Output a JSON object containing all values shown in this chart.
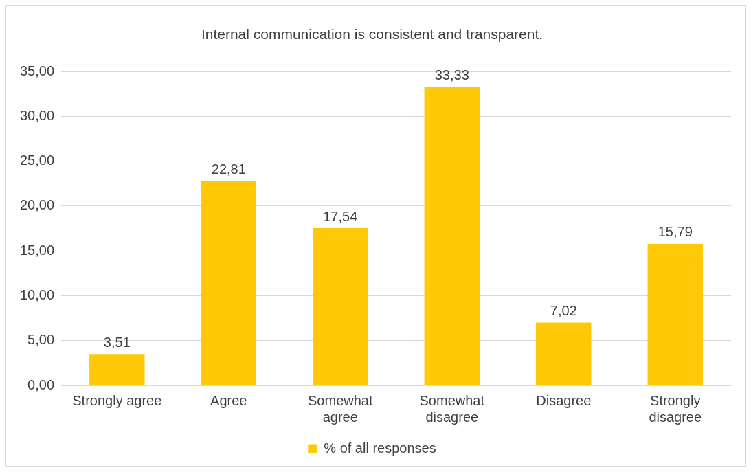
{
  "chart_data": {
    "type": "bar",
    "title": "Internal communication is consistent and transparent.",
    "categories": [
      "Strongly agree",
      "Agree",
      "Somewhat agree",
      "Somewhat disagree",
      "Disagree",
      "Strongly disagree"
    ],
    "series": [
      {
        "name": "% of all responses",
        "color": "#ffc908",
        "values": [
          3.51,
          22.81,
          17.54,
          33.33,
          7.02,
          15.79
        ],
        "value_labels": [
          "3,51",
          "22,81",
          "17,54",
          "33,33",
          "7,02",
          "15,79"
        ]
      }
    ],
    "ylim": [
      0,
      35
    ],
    "yticks": [
      {
        "value": 0,
        "label": "0,00"
      },
      {
        "value": 5,
        "label": "5,00"
      },
      {
        "value": 10,
        "label": "10,00"
      },
      {
        "value": 15,
        "label": "15,00"
      },
      {
        "value": 20,
        "label": "20,00"
      },
      {
        "value": 25,
        "label": "25,00"
      },
      {
        "value": 30,
        "label": "30,00"
      },
      {
        "value": 35,
        "label": "35,00"
      }
    ],
    "grid": "y",
    "legend": "bottom"
  }
}
